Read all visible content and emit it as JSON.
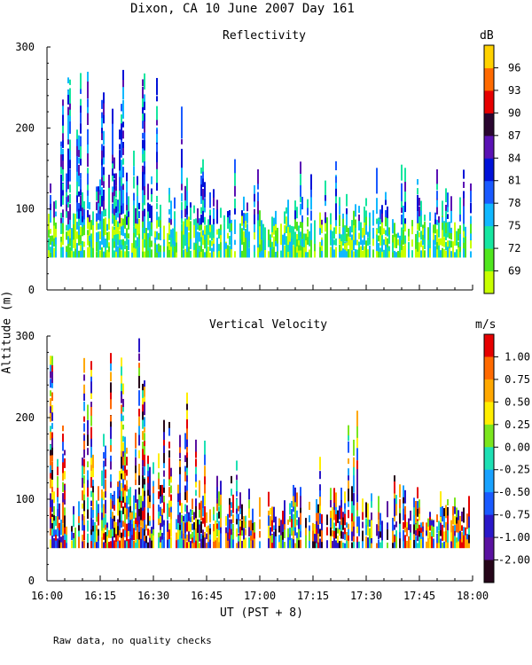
{
  "header": {
    "title": "Dixon, CA 10 June 2007  Day 161"
  },
  "footer": {
    "note": "Raw data, no quality checks"
  },
  "shared": {
    "ylabel": "Altitude (m)",
    "xlabel": "UT  (PST + 8)"
  },
  "chart_data": [
    {
      "type": "heatmap",
      "title": "Reflectivity",
      "xlabel": "UT  (PST + 8)",
      "ylabel": "Altitude (m)",
      "x_range": [
        "16:00",
        "18:00"
      ],
      "x_ticks": [
        "16:00",
        "16:15",
        "16:30",
        "16:45",
        "17:00",
        "17:15",
        "17:30",
        "17:45",
        "18:00"
      ],
      "ylim": [
        0,
        300
      ],
      "y_ticks": [
        0,
        100,
        200,
        300
      ],
      "colorbar": {
        "unit": "dB",
        "labels": [
          "69",
          "72",
          "75",
          "78",
          "81",
          "84",
          "87",
          "90",
          "93",
          "96"
        ],
        "colors": [
          "#c8ff00",
          "#50e61e",
          "#16e6a0",
          "#11b8ff",
          "#1a5aff",
          "#0012d8",
          "#5a12b4",
          "#2a0630",
          "#e60000",
          "#ff6a00",
          "#ffd200"
        ]
      },
      "summary": "Echoes concentrated between ~40 and 100 m altitude throughout 16:00-18:00, with taller plumes up to 300 m between 16:00 and 16:40 and isolated columns to ~200 m after 17:00."
    },
    {
      "type": "heatmap",
      "title": "Vertical Velocity",
      "xlabel": "UT  (PST + 8)",
      "ylabel": "Altitude (m)",
      "x_range": [
        "16:00",
        "18:00"
      ],
      "x_ticks": [
        "16:00",
        "16:15",
        "16:30",
        "16:45",
        "17:00",
        "17:15",
        "17:30",
        "17:45",
        "18:00"
      ],
      "ylim": [
        0,
        300
      ],
      "y_ticks": [
        0,
        100,
        200,
        300
      ],
      "colorbar": {
        "unit": "m/s",
        "labels": [
          "1.00",
          "0.75",
          "0.50",
          "0.25",
          "0.00",
          "-0.25",
          "-0.50",
          "-0.75",
          "-1.00",
          "-2.00"
        ],
        "colors": [
          "#e60000",
          "#ff6a00",
          "#ffa800",
          "#ffee00",
          "#7be61e",
          "#1ee0b4",
          "#19a2ff",
          "#1a5aff",
          "#2a18c8",
          "#5a12a0",
          "#26061a"
        ]
      },
      "summary": "Mixed up- and downdrafts between ~40 and 150 m for the whole period, strong updrafts (red/orange) near 16:25-16:35, 17:20 and 17:27 reaching ~240 m."
    }
  ]
}
